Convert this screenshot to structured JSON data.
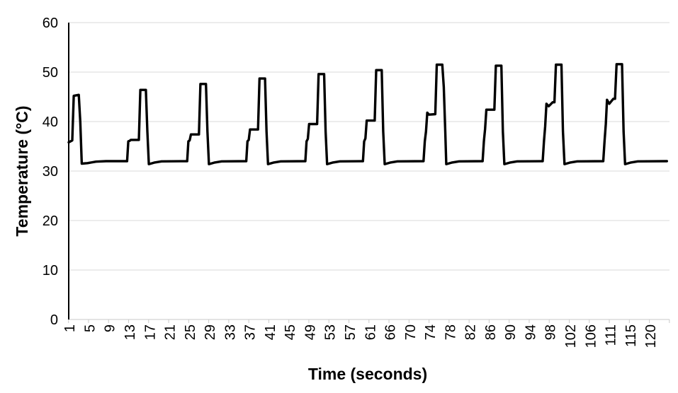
{
  "chart_data": {
    "type": "line",
    "title": "",
    "xlabel": "Time (seconds)",
    "ylabel": "Temperature (°C)",
    "ylim": [
      0,
      60
    ],
    "yticks": [
      0,
      10,
      20,
      30,
      40,
      50,
      60
    ],
    "xtick_labels": [
      "1",
      "5",
      "9",
      "13",
      "17",
      "21",
      "25",
      "29",
      "33",
      "37",
      "41",
      "45",
      "49",
      "53",
      "57",
      "61",
      "66",
      "70",
      "74",
      "78",
      "82",
      "86",
      "90",
      "94",
      "98",
      "102",
      "106",
      "111",
      "115",
      "120"
    ],
    "x_samples_per_tick": 4,
    "x_sample_range": [
      0,
      119
    ],
    "grid": "horizontal",
    "legend": "none",
    "baseline_c": 32,
    "dip_after_spike_c": 31.4,
    "spike_label_times_s": [
      1,
      13,
      25,
      37,
      49,
      61,
      74,
      86,
      98,
      111
    ],
    "spike_step_values_c": [
      36.0,
      36.3,
      37.4,
      38.4,
      39.5,
      40.2,
      41.5,
      42.4,
      43.5,
      44.3
    ],
    "spike_peak_values_c": [
      45.4,
      46.4,
      47.6,
      48.7,
      49.6,
      50.4,
      51.5,
      51.3,
      51.5,
      51.6
    ],
    "colors": {
      "line": "#000000",
      "gridline": "#d9d9d9",
      "y_axis": "#000000",
      "x_axis": "#c9c9c9",
      "tick_mark": "#c9c9c9",
      "label": "#000000"
    },
    "series": [
      {
        "name": "temperature",
        "points": [
          [
            -0.45,
            35.8
          ],
          [
            0.25,
            36.2
          ],
          [
            0.55,
            45.2
          ],
          [
            1.55,
            45.4
          ],
          [
            1.85,
            40
          ],
          [
            2.15,
            31.5
          ],
          [
            3.3,
            31.6
          ],
          [
            5.0,
            31.9
          ],
          [
            7.0,
            32
          ],
          [
            11.2,
            32
          ],
          [
            11.45,
            36.0
          ],
          [
            11.7,
            36.1
          ],
          [
            11.95,
            36.3
          ],
          [
            13.55,
            36.3
          ],
          [
            13.85,
            46.4
          ],
          [
            14.95,
            46.4
          ],
          [
            15.25,
            38
          ],
          [
            15.55,
            31.4
          ],
          [
            16.6,
            31.7
          ],
          [
            18.1,
            31.95
          ],
          [
            23.2,
            32
          ],
          [
            23.45,
            36.0
          ],
          [
            23.7,
            36.2
          ],
          [
            23.95,
            37.4
          ],
          [
            25.55,
            37.4
          ],
          [
            25.85,
            47.6
          ],
          [
            26.95,
            47.6
          ],
          [
            27.25,
            38
          ],
          [
            27.55,
            31.4
          ],
          [
            28.6,
            31.7
          ],
          [
            30.1,
            31.95
          ],
          [
            35.0,
            32
          ],
          [
            35.25,
            36.0
          ],
          [
            35.5,
            36.3
          ],
          [
            35.75,
            38.4
          ],
          [
            37.35,
            38.4
          ],
          [
            37.65,
            48.7
          ],
          [
            38.75,
            48.7
          ],
          [
            39.05,
            38
          ],
          [
            39.35,
            31.4
          ],
          [
            40.4,
            31.7
          ],
          [
            41.9,
            31.95
          ],
          [
            46.8,
            32
          ],
          [
            47.05,
            36.0
          ],
          [
            47.3,
            36.5
          ],
          [
            47.55,
            39.5
          ],
          [
            49.15,
            39.5
          ],
          [
            49.45,
            49.6
          ],
          [
            50.55,
            49.6
          ],
          [
            50.85,
            38
          ],
          [
            51.15,
            31.4
          ],
          [
            52.2,
            31.7
          ],
          [
            53.7,
            31.95
          ],
          [
            58.3,
            32
          ],
          [
            58.55,
            36.0
          ],
          [
            58.8,
            36.6
          ],
          [
            59.05,
            40.2
          ],
          [
            60.65,
            40.2
          ],
          [
            60.95,
            50.4
          ],
          [
            62.05,
            50.4
          ],
          [
            62.35,
            38
          ],
          [
            62.65,
            31.4
          ],
          [
            63.7,
            31.7
          ],
          [
            65.2,
            31.95
          ],
          [
            70.4,
            32
          ],
          [
            70.65,
            36.0
          ],
          [
            70.9,
            38.0
          ],
          [
            71.15,
            41.8
          ],
          [
            71.5,
            41.4
          ],
          [
            72.75,
            41.5
          ],
          [
            73.05,
            51.5
          ],
          [
            74.15,
            51.5
          ],
          [
            74.45,
            47.0
          ],
          [
            74.75,
            38
          ],
          [
            74.95,
            31.4
          ],
          [
            76.0,
            31.7
          ],
          [
            77.5,
            31.95
          ],
          [
            82.2,
            32
          ],
          [
            82.45,
            36.0
          ],
          [
            82.7,
            38.5
          ],
          [
            82.95,
            42.4
          ],
          [
            84.55,
            42.4
          ],
          [
            84.85,
            51.3
          ],
          [
            85.95,
            51.3
          ],
          [
            86.25,
            38
          ],
          [
            86.55,
            31.4
          ],
          [
            87.6,
            31.7
          ],
          [
            89.1,
            31.95
          ],
          [
            94.2,
            32
          ],
          [
            94.45,
            36.0
          ],
          [
            94.7,
            39.0
          ],
          [
            94.95,
            43.6
          ],
          [
            95.4,
            43.1
          ],
          [
            96.2,
            43.9
          ],
          [
            96.55,
            43.9
          ],
          [
            96.85,
            51.5
          ],
          [
            97.95,
            51.5
          ],
          [
            98.25,
            38
          ],
          [
            98.55,
            31.4
          ],
          [
            99.6,
            31.7
          ],
          [
            101.1,
            31.95
          ],
          [
            106.3,
            32
          ],
          [
            106.55,
            36.0
          ],
          [
            106.8,
            39.5
          ],
          [
            107.05,
            44.4
          ],
          [
            107.5,
            43.6
          ],
          [
            108.3,
            44.6
          ],
          [
            108.65,
            44.6
          ],
          [
            108.95,
            51.6
          ],
          [
            110.05,
            51.6
          ],
          [
            110.35,
            38
          ],
          [
            110.65,
            31.4
          ],
          [
            111.7,
            31.7
          ],
          [
            113.2,
            31.95
          ],
          [
            119,
            32
          ]
        ]
      }
    ]
  }
}
